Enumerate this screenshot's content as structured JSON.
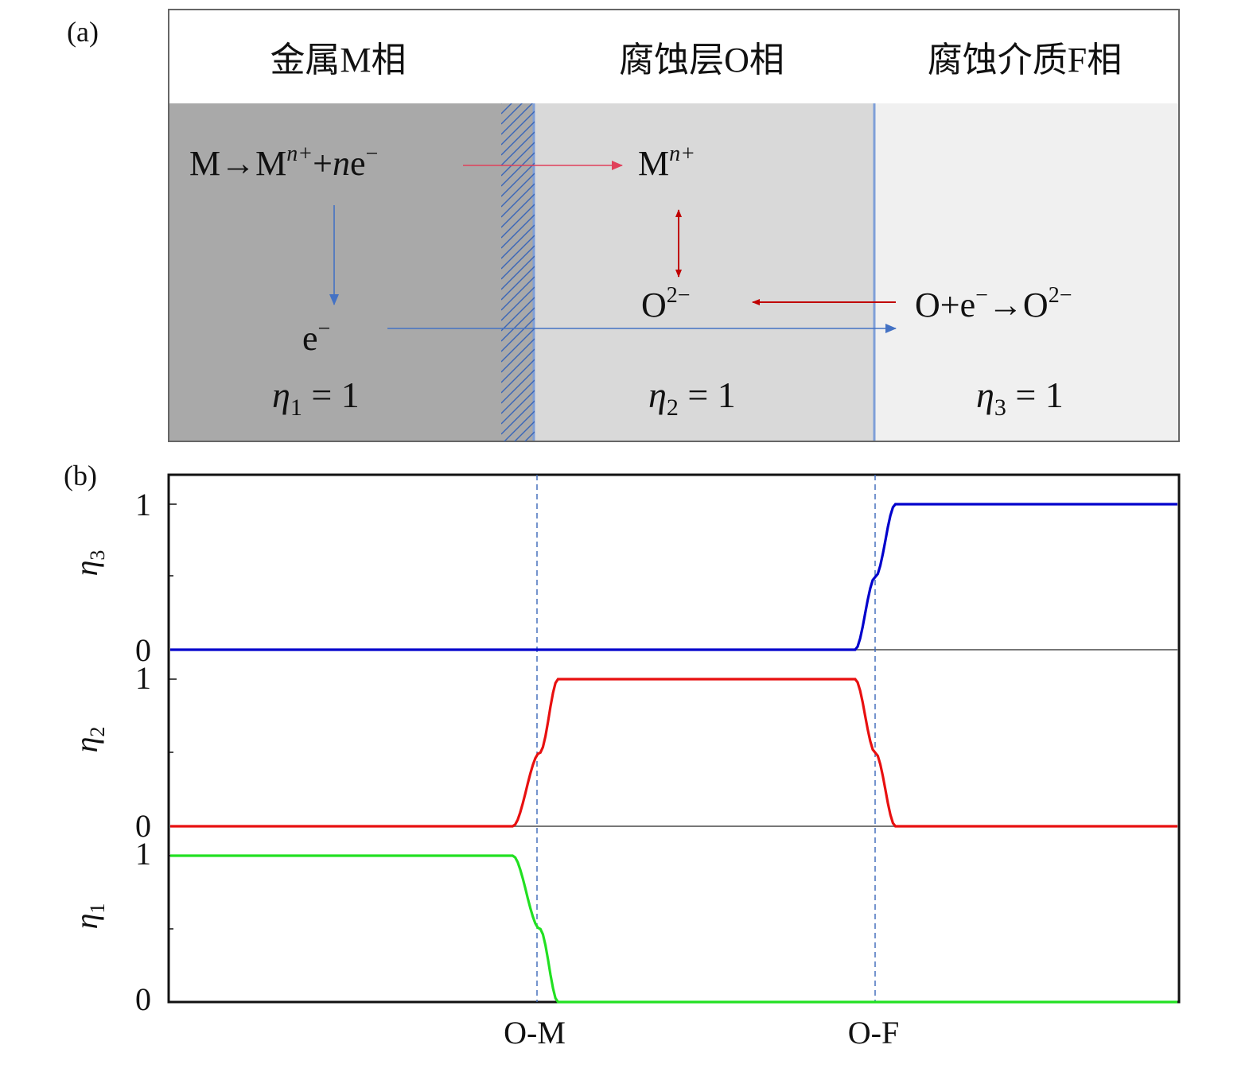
{
  "panel_a": {
    "label": "(a)",
    "phase_headers": [
      "金属M相",
      "腐蚀层O相",
      "腐蚀介质F相"
    ],
    "reaction_metal": {
      "lhs": "M→M",
      "sup": "n+",
      "plus": "+",
      "n": "n",
      "e": "e",
      "e_sup": "−"
    },
    "ion_metal": {
      "base": "M",
      "sup": "n+"
    },
    "ion_oxygen": {
      "base": "O",
      "sup": "2−"
    },
    "reaction_oxygen": {
      "lhs": "O+e",
      "e_sup": "−",
      "arrow": "→O",
      "sup": "2−"
    },
    "electron": {
      "base": "e",
      "sup": "−"
    },
    "etas": [
      {
        "sym": "η",
        "sub": "1",
        "rhs": " = 1"
      },
      {
        "sym": "η",
        "sub": "2",
        "rhs": " = 1"
      },
      {
        "sym": "η",
        "sub": "3",
        "rhs": " = 1"
      }
    ],
    "colors": {
      "metal": "#a9a9a9",
      "oxide": "#d9d9d9",
      "medium": "#f0f0f0",
      "red_arrow": "#c00000",
      "blue_arrow": "#4472c4"
    }
  },
  "panel_b": {
    "label": "(b)",
    "x_ticks": [
      "O-M",
      "O-F"
    ],
    "rows": [
      {
        "ylabel_sym": "η",
        "ylabel_sub": "3",
        "tick_top": "1",
        "tick_bottom": "0",
        "color": "#0000cc"
      },
      {
        "ylabel_sym": "η",
        "ylabel_sub": "2",
        "tick_top": "1",
        "tick_bottom": "0",
        "color": "#e81010"
      },
      {
        "ylabel_sym": "η",
        "ylabel_sub": "1",
        "tick_top": "1",
        "tick_bottom": "0",
        "color": "#22e022"
      }
    ]
  },
  "chart_data": {
    "type": "line",
    "x": [
      0,
      0.34,
      0.367,
      0.385,
      0.68,
      0.7,
      0.72,
      1.0
    ],
    "x_markers": [
      "O-M",
      "O-F"
    ],
    "series": [
      {
        "name": "η3",
        "values": [
          0,
          0,
          0,
          0,
          0,
          0.5,
          1,
          1
        ]
      },
      {
        "name": "η2",
        "values": [
          0,
          0,
          0.5,
          1,
          1,
          0.5,
          0,
          0
        ]
      },
      {
        "name": "η1",
        "values": [
          1,
          1,
          0.5,
          0,
          0,
          0,
          0,
          0
        ]
      }
    ],
    "ylim": [
      0,
      1
    ]
  }
}
